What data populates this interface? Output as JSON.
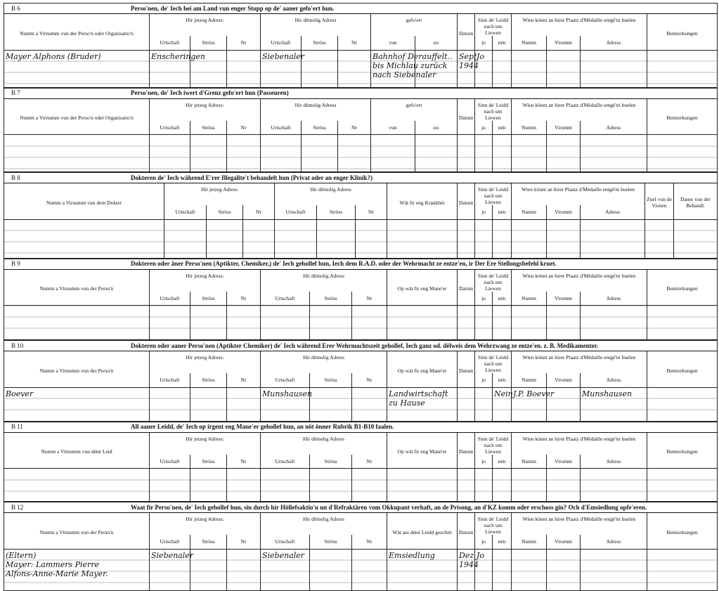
{
  "column_sets": {
    "A": {
      "groups": [
        {
          "label": "Numm a Virnumm vun der Perso'n oder Organisatio'n",
          "subs": []
        },
        {
          "label": "Hir jetzeg Adress:",
          "subs": [
            "Urtschaft",
            "Ströss",
            "Nr"
          ]
        },
        {
          "label": "Hir dëmolig Adress",
          "subs": [
            "Urtschaft",
            "Ströss",
            "Nr"
          ]
        },
        {
          "label": "gefo'ert",
          "subs": [
            "vun",
            "no"
          ]
        },
        {
          "label": "Datum",
          "subs": []
        },
        {
          "label": "Sinn de' Leidd nach um Liewen",
          "subs": [
            "jo",
            "nén"
          ]
        },
        {
          "label": "Wien könnt an hirer Plaatz d'Médaille entgé'nt huelen",
          "subs": [
            "Numm",
            "Virumm",
            "Adress"
          ]
        },
        {
          "label": "Bemierkungen",
          "subs": []
        }
      ]
    },
    "B": {
      "groups": [
        {
          "label": "Numm a Virnumm vun dem Dokter",
          "subs": []
        },
        {
          "label": "Hir jetzeg Adress",
          "subs": [
            "Urtschaft",
            "Ströss",
            "Nr"
          ]
        },
        {
          "label": "Hir dëmolig Adress",
          "subs": [
            "Urtschaft",
            "Ströss",
            "Nr"
          ]
        },
        {
          "label": "Wät fir eng Krankhét",
          "subs": []
        },
        {
          "label": "Datum",
          "subs": []
        },
        {
          "label": "Sinn de' Leidd nach um Liewen",
          "subs": [
            "jo",
            "nén"
          ]
        },
        {
          "label": "Wien könnt an hirer Plaatz d'Médaille entgé'nt huelen",
          "subs": [
            "Numm",
            "Virumm",
            "Adress"
          ]
        },
        {
          "label": "Zuel vun de Visiten",
          "subs": []
        },
        {
          "label": "Dauer vun der Behandl.",
          "subs": []
        }
      ]
    }
  },
  "sections": [
    {
      "code": "B 6",
      "title": "Perso'nen, de' Iech hei am Land vun enger Stopp op de' aaner gefo'ert hun.",
      "set": "A",
      "row": [
        "Mayer Alphons (Bruder)",
        "Enscheringen",
        "",
        "",
        "Siebenaler",
        "",
        "",
        "Bahnhof Derauffelt..\nbis Michlau zurück\nnach Siebenaler",
        "",
        "Sept\n1944",
        "Jo",
        "",
        "",
        "",
        "",
        ""
      ]
    },
    {
      "code": "B 7",
      "title": "Perso'nen, de' Iech iwert d'Grenz gefo'ert hun (Passeuren)",
      "set": "A",
      "name_label": "Numm a Virnumm vun der Perso'n oder Organisatio'n",
      "row": [
        "",
        "",
        "",
        "",
        "",
        "",
        "",
        "",
        "",
        "",
        "",
        "",
        "",
        "",
        "",
        ""
      ]
    },
    {
      "code": "B 8",
      "title": "Dokteren de' Iech während E'rer Illegalite't behandelt hun (Privat oder an enger Klinik?)",
      "set": "B",
      "row": [
        "",
        "",
        "",
        "",
        "",
        "",
        "",
        "",
        "",
        "",
        "",
        "",
        "",
        "",
        "",
        ""
      ]
    },
    {
      "code": "B 9",
      "title": "Dokteren oder äner Perso'nen (Aptikter, Chemiker,) de' Iech gehollef hun, Iech dem R.A.D. oder der Wehrmacht ze entze'en, ir Der Ere Stellongsbefehl kruet.",
      "set": "C",
      "groups_override": {
        "0": "Numm a Virnumm vun der Perso'n",
        "3": "Op wät fir eng Mane'er"
      },
      "row": [
        "",
        "",
        "",
        "",
        "",
        "",
        "",
        "",
        "",
        "",
        "",
        "",
        "",
        "",
        "",
        ""
      ]
    },
    {
      "code": "B 10",
      "title": "Dokteren oder aaner Perso'nen (Aptikter Chemiker) de' Iech während Erer Wehrmachtszeit gehollef, Iech ganz od. dëlweis dem Wehrzwang ze entze'en. z. B. Medikamenter.",
      "set": "C",
      "groups_override": {
        "0": "Numm a Virnumm vun der Perso'n",
        "3": "Op wät fir eng Mane'er"
      },
      "row": [
        "Boever",
        "",
        "",
        "",
        "Munshausen",
        "",
        "",
        "Landwirtschaft\nzu Hause",
        "",
        "",
        "",
        "Nein",
        "J.P. Boever",
        "",
        "Munshausen",
        ""
      ]
    },
    {
      "code": "B 11",
      "title": "All aaner Leidd, de' Iech op irgent eng Mane'er gehollef hun, an nöt önner Rubrik B1-B10 faalen.",
      "set": "C",
      "groups_override": {
        "0": "Numm a Virnumm vun déné Leid",
        "3": "Op wät fir eng Mane'er"
      },
      "row": [
        "",
        "",
        "",
        "",
        "",
        "",
        "",
        "",
        "",
        "",
        "",
        "",
        "",
        "",
        "",
        ""
      ]
    },
    {
      "code": "B 12",
      "title": "Waat fir Perso'nen, de' Iech gehollef hun, sin durch hir Höllefsaktio'n un d'Refraktären vom Okkupant verhaft, an de Prisong, an d'KZ komm oder erschoss gin? Och d'Emsiedlung opfe'eren.",
      "set": "C",
      "groups_override": {
        "0": "Numm a Virnumm vun der Perso'n",
        "3": "Wät ass déné Leidd geschitt"
      },
      "row": [
        "(Eltern)\nMayer: Lammers Pierre\nAlfons-Anne-Marie Mayer.",
        "Siebenaler",
        "",
        "",
        "Siebenaler",
        "",
        "",
        "Emsiedlung",
        "",
        "Dez\n1944",
        "Jo",
        "",
        "",
        "",
        "",
        ""
      ]
    }
  ]
}
